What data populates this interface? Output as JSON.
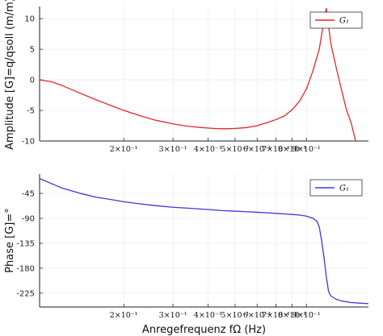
{
  "chart_data": [
    {
      "type": "line",
      "title": "",
      "xlabel": "",
      "ylabel": "Amplitude [G]=q/qsoll (m/m)",
      "xscale": "log",
      "xlim": [
        0.1,
        1.5
      ],
      "ylim": [
        -10,
        12
      ],
      "yticks": [
        10,
        5,
        0,
        -5,
        -10
      ],
      "ytick_labels": [
        "10",
        "5",
        "0",
        "-5",
        "-10"
      ],
      "xticks": [
        0.2,
        0.3,
        0.4,
        0.5,
        0.6,
        0.7,
        0.8,
        0.9
      ],
      "xtick_labels": [
        "2×10⁻¹",
        "3×10⁻¹",
        "4×10⁻¹",
        "5×10⁻¹",
        "6×10⁻¹",
        "7×10⁻¹",
        "8×10⁻¹",
        "9×10⁻¹"
      ],
      "grid": true,
      "legend_position": "top-right",
      "series": [
        {
          "name": "G₁",
          "color": "#e6252a",
          "x": [
            0.1,
            0.11,
            0.12,
            0.14,
            0.16,
            0.18,
            0.2,
            0.23,
            0.26,
            0.3,
            0.34,
            0.38,
            0.42,
            0.46,
            0.5,
            0.55,
            0.6,
            0.65,
            0.7,
            0.75,
            0.8,
            0.85,
            0.9,
            0.95,
            1.0,
            1.03,
            1.06,
            1.1,
            1.15,
            1.2,
            1.25,
            1.3,
            1.35
          ],
          "y": [
            0.0,
            -0.3,
            -0.9,
            -2.2,
            -3.3,
            -4.2,
            -5.0,
            -5.9,
            -6.6,
            -7.2,
            -7.6,
            -7.8,
            -7.95,
            -8.0,
            -7.95,
            -7.8,
            -7.5,
            -7.0,
            -6.5,
            -5.9,
            -4.9,
            -3.5,
            -1.5,
            1.5,
            5.0,
            8.5,
            11.7,
            6.0,
            2.0,
            -1.5,
            -4.8,
            -7.0,
            -10.0
          ]
        }
      ]
    },
    {
      "type": "line",
      "title": "",
      "xlabel": "Anregefrequenz fΩ (Hz)",
      "ylabel": "Phase [G]=°",
      "xscale": "log",
      "xlim": [
        0.1,
        1.5
      ],
      "ylim": [
        -250,
        -10
      ],
      "yticks": [
        -45,
        -90,
        -135,
        -180,
        -225
      ],
      "ytick_labels": [
        "-45",
        "-90",
        "-135",
        "-180",
        "-225"
      ],
      "xticks": [
        0.2,
        0.3,
        0.4,
        0.5,
        0.6,
        0.7,
        0.8,
        0.9
      ],
      "xtick_labels": [
        "2×10⁻¹",
        "3×10⁻¹",
        "4×10⁻¹",
        "5×10⁻¹",
        "6×10⁻¹",
        "7×10⁻¹",
        "8×10⁻¹",
        "9×10⁻¹"
      ],
      "grid": true,
      "legend_position": "top-right",
      "series": [
        {
          "name": "G₁",
          "color": "#3a3ad0",
          "x": [
            0.1,
            0.11,
            0.12,
            0.14,
            0.16,
            0.18,
            0.2,
            0.23,
            0.26,
            0.3,
            0.35,
            0.4,
            0.45,
            0.5,
            0.55,
            0.6,
            0.65,
            0.7,
            0.75,
            0.8,
            0.85,
            0.9,
            0.95,
            0.98,
            1.0,
            1.02,
            1.04,
            1.06,
            1.08,
            1.1,
            1.15,
            1.2,
            1.3,
            1.4,
            1.5
          ],
          "y": [
            -18,
            -27,
            -35,
            -45,
            -52,
            -56,
            -60,
            -64,
            -67,
            -70,
            -72,
            -74,
            -76,
            -77,
            -78,
            -79,
            -80,
            -81,
            -82,
            -83,
            -84,
            -86,
            -90,
            -95,
            -105,
            -130,
            -160,
            -195,
            -222,
            -230,
            -236,
            -239,
            -242,
            -243,
            -244
          ]
        }
      ]
    }
  ]
}
